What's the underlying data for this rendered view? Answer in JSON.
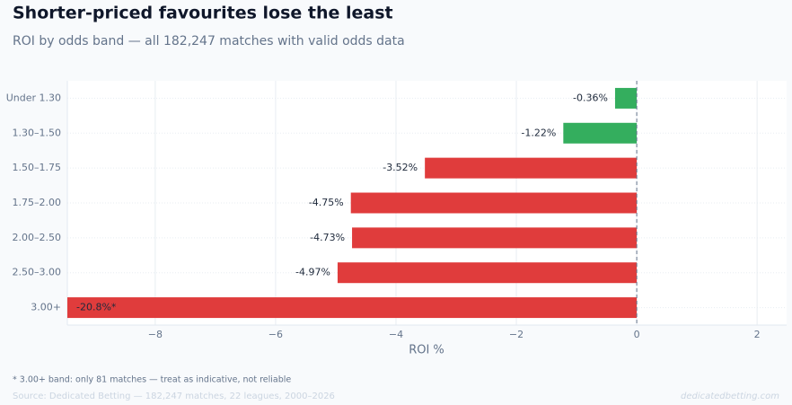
{
  "chart_data": {
    "type": "hbar",
    "title": "Shorter-priced favourites lose the least",
    "subtitle": "ROI by odds band — all 182,247 matches with valid odds data",
    "x_label": "ROI %",
    "categories": [
      "Under 1.30",
      "1.30–1.50",
      "1.50–1.75",
      "1.75–2.00",
      "2.00–2.50",
      "2.50–3.00",
      "3.00+"
    ],
    "values": [
      -0.36,
      -1.22,
      -3.52,
      -4.75,
      -4.73,
      -4.97,
      -20.8
    ],
    "value_labels": [
      "-0.36%",
      "-1.22%",
      "-3.52%",
      "-4.75%",
      "-4.73%",
      "-4.97%",
      "-20.8%*"
    ],
    "colors": [
      "#34ae5e",
      "#34ae5e",
      "#e03c3c",
      "#e03c3c",
      "#e03c3c",
      "#e03c3c",
      "#e03c3c"
    ],
    "xlim": [
      -9.46,
      2.49
    ],
    "xticks": [
      {
        "value": -8,
        "label": "−8"
      },
      {
        "value": -6,
        "label": "−6"
      },
      {
        "value": -4,
        "label": "−4"
      },
      {
        "value": -2,
        "label": "−2"
      },
      0,
      2
    ],
    "grid": true,
    "footnote": "* 3.00+ band: only 81 matches — treat as indicative, not reliable",
    "source": "Source: Dedicated Betting — 182,247 matches, 22 leagues, 2000–2026",
    "watermark": "dedicatedbetting.com"
  }
}
